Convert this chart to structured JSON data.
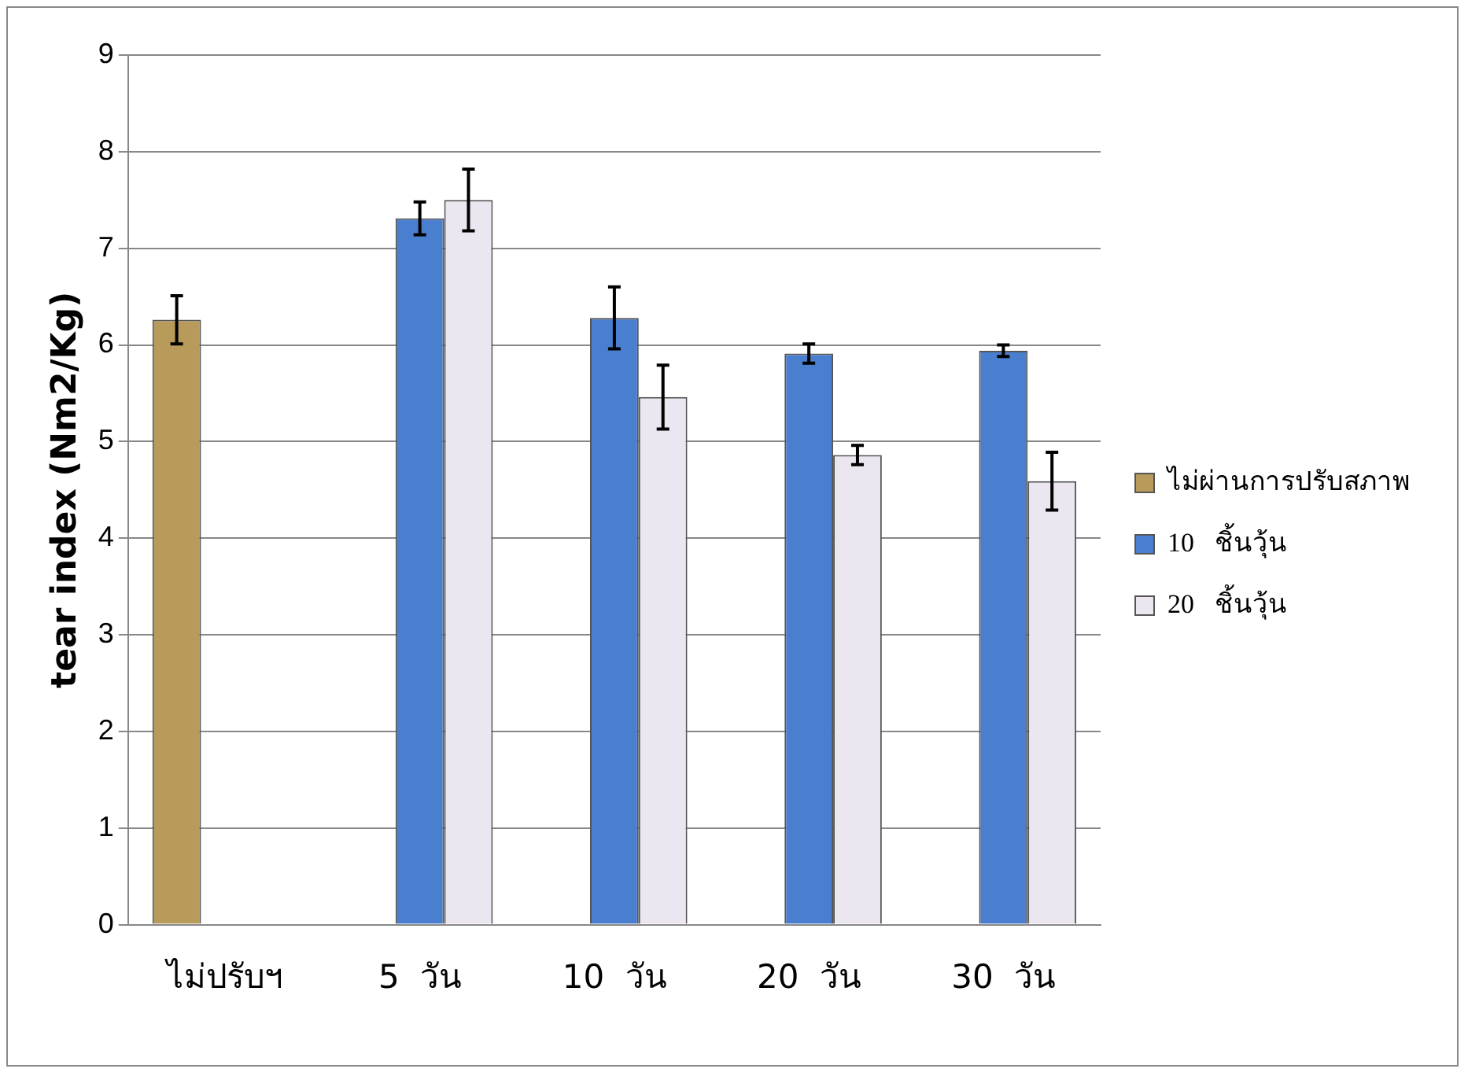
{
  "chart_data": {
    "type": "bar",
    "ylabel": "tear index (Nm2/Kg)",
    "categories": [
      "ไม่ปรับฯ",
      "5  วัน",
      "10  วัน",
      "20  วัน",
      "30  วัน"
    ],
    "series": [
      {
        "name": "ไม่ผ่านการปรับสภาพ",
        "color": "#b89a5a",
        "values": [
          6.26,
          null,
          null,
          null,
          null
        ],
        "errors": [
          0.25,
          null,
          null,
          null,
          null
        ]
      },
      {
        "name": "10   ชิ้นวุ้น",
        "color": "#4a7fd0",
        "values": [
          null,
          7.31,
          6.28,
          5.91,
          5.94
        ],
        "errors": [
          null,
          0.17,
          0.32,
          0.1,
          0.06
        ]
      },
      {
        "name": "20   ชิ้นวุ้น",
        "color": "#ebe6f0",
        "values": [
          null,
          7.5,
          5.46,
          4.86,
          4.59
        ],
        "errors": [
          null,
          0.32,
          0.33,
          0.1,
          0.3
        ]
      }
    ],
    "ylim": [
      0,
      9
    ],
    "yticks": [
      0,
      1,
      2,
      3,
      4,
      5,
      6,
      7,
      8,
      9
    ],
    "grid": "y",
    "legend": "right"
  }
}
